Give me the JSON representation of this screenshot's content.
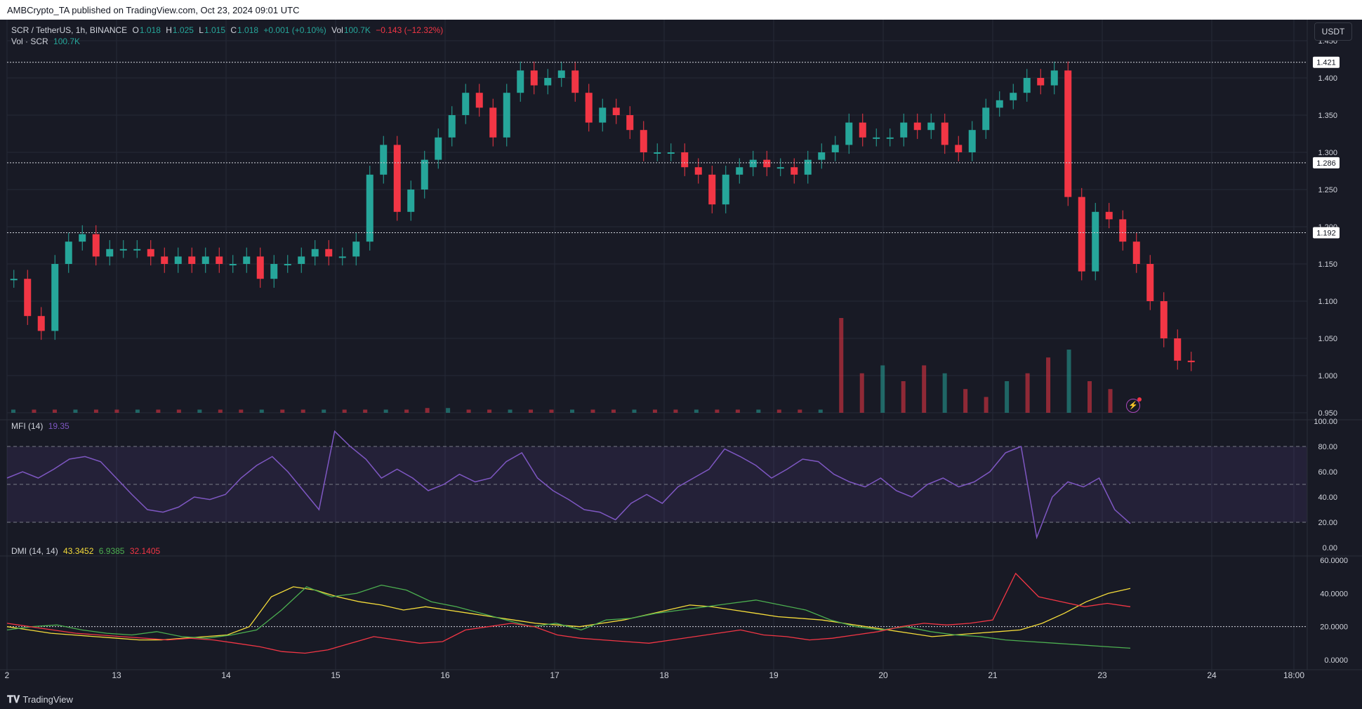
{
  "header": {
    "published": "AMBCrypto_TA published on TradingView.com, Oct 23, 2024 09:01 UTC"
  },
  "legend": {
    "symbol": "SCR / TetherUS, 1h, BINANCE",
    "o_label": "O",
    "o_value": "1.018",
    "h_label": "H",
    "h_value": "1.025",
    "l_label": "L",
    "l_value": "1.015",
    "c_label": "C",
    "c_value": "1.018",
    "change": "+0.001 (+0.10%)",
    "vol_label": "Vol",
    "vol_value": "100.7K",
    "vol_change": "−0.143 (−12.32%)",
    "vol_line_label": "Vol · SCR",
    "vol_line_value": "100.7K"
  },
  "mfi_legend": {
    "label": "MFI (14)",
    "value": "19.35"
  },
  "dmi_legend": {
    "label": "DMI (14, 14)",
    "adx": "43.3452",
    "plus_di": "6.9385",
    "minus_di": "32.1405"
  },
  "currency_button": "USDT",
  "footer": {
    "brand": "TradingView"
  },
  "colors": {
    "up": "#26a69a",
    "down": "#f23645",
    "bg": "#181a25",
    "grid": "#262936",
    "mfi": "#7e57c2",
    "adx": "#f6dd3a",
    "plus_di": "#4caf50",
    "minus_di": "#f23645"
  },
  "chart_data": [
    {
      "type": "candlestick",
      "title": "SCR / TetherUS, 1h, BINANCE",
      "ylim": [
        0.95,
        1.45
      ],
      "y_ticks": [
        "1.450",
        "1.400",
        "1.350",
        "1.300",
        "1.250",
        "1.200",
        "1.150",
        "1.100",
        "1.050",
        "1.000",
        "0.950"
      ],
      "price_lines": [
        {
          "value": 1.421,
          "label": "1.421"
        },
        {
          "value": 1.286,
          "label": "1.286"
        },
        {
          "value": 1.192,
          "label": "1.192"
        }
      ],
      "x_ticks": [
        "2",
        "13",
        "14",
        "15",
        "16",
        "17",
        "18",
        "19",
        "20",
        "21",
        "23",
        "24",
        "18:00"
      ],
      "x_tick_pos": [
        0,
        1,
        2,
        3,
        4,
        5,
        6,
        7,
        8,
        9,
        10,
        11,
        11.75
      ],
      "series_close_by_day": [
        {
          "day": 0,
          "values": [
            1.13,
            1.08,
            1.06,
            1.15,
            1.18,
            1.19,
            1.16,
            1.17
          ]
        },
        {
          "day": 1,
          "values": [
            1.17,
            1.17,
            1.16,
            1.15,
            1.16,
            1.15,
            1.16,
            1.15
          ]
        },
        {
          "day": 2,
          "values": [
            1.15,
            1.16,
            1.13,
            1.15,
            1.15,
            1.16,
            1.17,
            1.16
          ]
        },
        {
          "day": 3,
          "values": [
            1.16,
            1.18,
            1.27,
            1.31,
            1.22,
            1.25,
            1.29,
            1.32
          ]
        },
        {
          "day": 4,
          "values": [
            1.35,
            1.38,
            1.36,
            1.32,
            1.38,
            1.41,
            1.39,
            1.4
          ]
        },
        {
          "day": 5,
          "values": [
            1.41,
            1.38,
            1.34,
            1.36,
            1.35,
            1.33,
            1.3,
            1.3
          ]
        },
        {
          "day": 6,
          "values": [
            1.3,
            1.28,
            1.27,
            1.23,
            1.27,
            1.28,
            1.29,
            1.28
          ]
        },
        {
          "day": 7,
          "values": [
            1.28,
            1.27,
            1.29,
            1.3,
            1.31,
            1.34,
            1.32,
            1.32
          ]
        },
        {
          "day": 8,
          "values": [
            1.32,
            1.34,
            1.33,
            1.34,
            1.31,
            1.3,
            1.33,
            1.36
          ]
        },
        {
          "day": 9,
          "values": [
            1.37,
            1.38,
            1.4,
            1.39,
            1.41,
            1.24,
            1.14,
            1.22
          ]
        },
        {
          "day": 10,
          "values": [
            1.21,
            1.18,
            1.15,
            1.1,
            1.05,
            1.02,
            1.018
          ]
        }
      ]
    },
    {
      "type": "bar",
      "title": "Vol · SCR",
      "series": [
        {
          "name": "Vol · SCR",
          "values": [
            2,
            2,
            2,
            2,
            2,
            2,
            2,
            2,
            2,
            2,
            2,
            2,
            2,
            2,
            2,
            2,
            2,
            2,
            2,
            2,
            3,
            3,
            2,
            2,
            2,
            2,
            2,
            2,
            2,
            2,
            2,
            2,
            2,
            2,
            2,
            2,
            2,
            2,
            2,
            2,
            60,
            25,
            30,
            20,
            30,
            25,
            15,
            10,
            20,
            25,
            35,
            40,
            20,
            15
          ]
        }
      ]
    },
    {
      "type": "line",
      "title": "MFI (14)",
      "ylim": [
        0,
        100
      ],
      "y_ticks": [
        "100.00",
        "80.00",
        "60.00",
        "40.00",
        "20.00",
        "0.00"
      ],
      "bands": [
        20,
        50,
        80
      ],
      "series": [
        {
          "values": [
            55,
            60,
            55,
            62,
            70,
            72,
            68,
            55,
            42,
            30,
            28,
            32,
            40,
            38,
            42,
            55,
            65,
            72,
            60,
            45,
            30,
            92,
            80,
            70,
            55,
            62,
            55,
            45,
            50,
            58,
            52,
            55,
            68,
            75,
            55,
            45,
            38,
            30,
            28,
            22,
            35,
            42,
            35,
            48,
            55,
            62,
            78,
            72,
            65,
            55,
            62,
            70,
            68,
            58,
            52,
            48,
            55,
            45,
            40,
            50,
            55,
            48,
            52,
            60,
            75,
            80,
            8,
            40,
            52,
            48,
            55,
            30,
            19
          ]
        }
      ]
    },
    {
      "type": "line",
      "title": "DMI (14, 14)",
      "ylim": [
        0,
        60
      ],
      "y_ticks": [
        "60.0000",
        "40.0000",
        "20.0000",
        "0.0000"
      ],
      "reference": 20,
      "series": [
        {
          "values": [
            20,
            18,
            16,
            15,
            14,
            13,
            12,
            12,
            13,
            14,
            15,
            20,
            38,
            44,
            42,
            38,
            35,
            33,
            30,
            32,
            30,
            28,
            26,
            24,
            22,
            21,
            20,
            22,
            24,
            27,
            30,
            33,
            32,
            30,
            28,
            26,
            25,
            24,
            22,
            20,
            18,
            16,
            14,
            15,
            16,
            17,
            18,
            22,
            28,
            35,
            40,
            43
          ]
        },
        {
          "values": [
            18,
            20,
            21,
            18,
            16,
            15,
            17,
            14,
            13,
            15,
            18,
            30,
            44,
            38,
            40,
            45,
            42,
            35,
            32,
            28,
            24,
            20,
            22,
            18,
            24,
            25,
            28,
            30,
            32,
            34,
            36,
            33,
            30,
            24,
            20,
            18,
            20,
            17,
            15,
            14,
            12,
            11,
            10,
            9,
            8,
            7
          ]
        },
        {
          "values": [
            22,
            20,
            18,
            16,
            15,
            14,
            13,
            12,
            13,
            12,
            10,
            8,
            5,
            4,
            6,
            10,
            14,
            12,
            10,
            11,
            18,
            20,
            22,
            20,
            15,
            13,
            12,
            11,
            10,
            12,
            14,
            16,
            18,
            15,
            14,
            12,
            13,
            15,
            17,
            20,
            22,
            21,
            22,
            24,
            52,
            38,
            35,
            32,
            34,
            32
          ]
        }
      ]
    }
  ]
}
